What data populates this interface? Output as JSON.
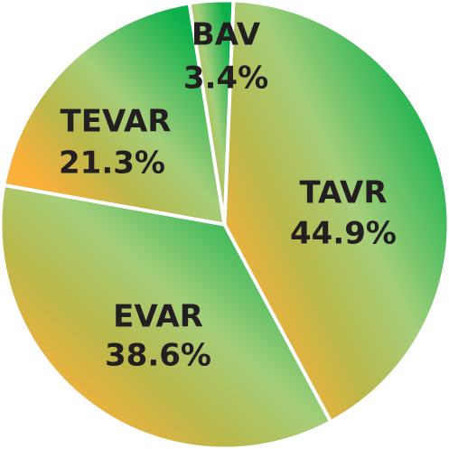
{
  "chart_data": {
    "type": "pie",
    "title": "",
    "slices": [
      {
        "label": "TAVR",
        "value_label": "44.9%",
        "value": 44.9
      },
      {
        "label": "EVAR",
        "value_label": "38.6%",
        "value": 38.6
      },
      {
        "label": "TEVAR",
        "value_label": "21.3%",
        "value": 21.3
      },
      {
        "label": "BAV",
        "value_label": "3.4%",
        "value": 3.4
      }
    ],
    "colors": {
      "green_dark": "#0db04b",
      "green_light": "#a5ce7a",
      "orange": "#fbb03b",
      "olive": "#b9b84a",
      "divider": "#ffffff",
      "label": "#231f20"
    },
    "legend": "none",
    "grid": false
  }
}
